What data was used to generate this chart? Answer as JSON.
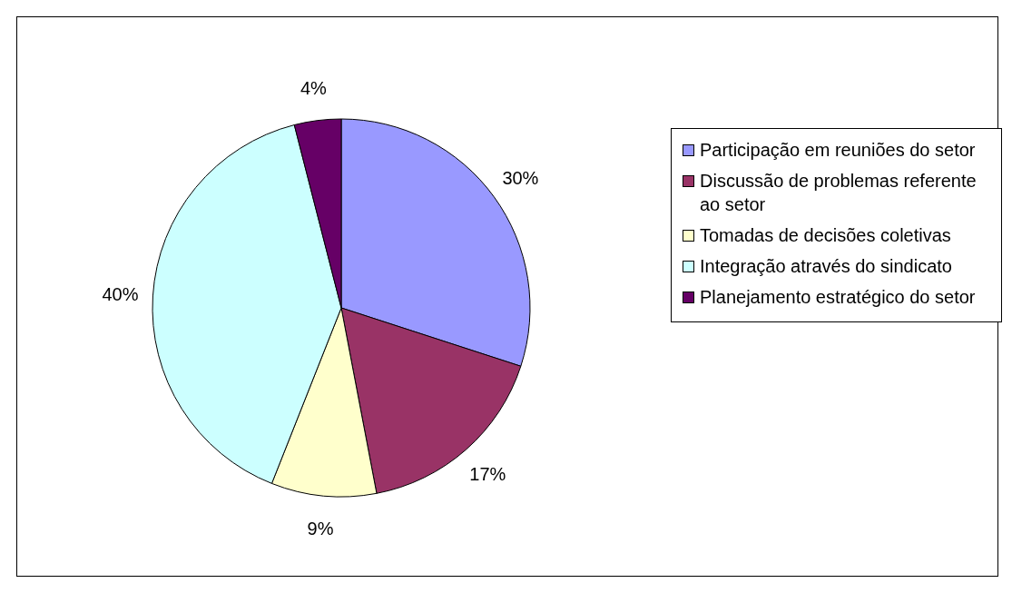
{
  "chart_data": {
    "type": "pie",
    "categories": [
      "Participação em reuniões do setor",
      "Discussão de problemas referente ao setor",
      "Tomadas de decisões coletivas",
      "Integração através do sindicato",
      "Planejamento estratégico do setor"
    ],
    "values": [
      30,
      17,
      9,
      40,
      4
    ],
    "colors": [
      "#9999ff",
      "#993366",
      "#ffffcc",
      "#ccffff",
      "#660066"
    ],
    "value_labels": [
      "30%",
      "17%",
      "9%",
      "40%",
      "4%"
    ],
    "legend": "right"
  }
}
